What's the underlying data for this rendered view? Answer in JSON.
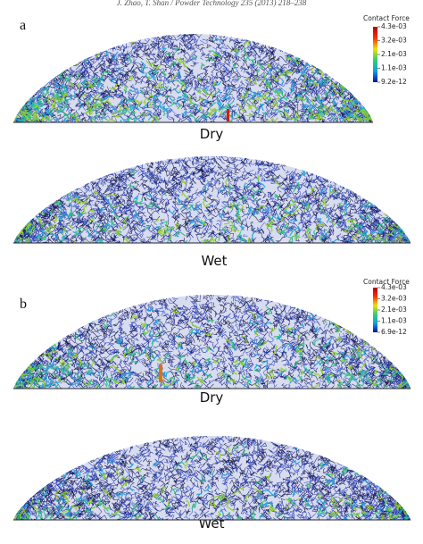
{
  "header": "J. Zhao, T. Shan / Powder Technology 235 (2013) 218–238",
  "panels": [
    {
      "label": "a",
      "colorbar": {
        "title": "Contact Force",
        "ticks": [
          "4.3e-03",
          "3.2e-03",
          "2.1e-03",
          "1.1e-03",
          "9.2e-12"
        ]
      },
      "images": [
        {
          "label": "Dry"
        },
        {
          "label": "Wet"
        }
      ]
    },
    {
      "label": "b",
      "colorbar": {
        "title": "Contact Force",
        "ticks": [
          "4.3e-03",
          "3.2e-03",
          "2.1e-03",
          "1.1e-03",
          "6.9e-12"
        ]
      },
      "images": [
        {
          "label": "Dry"
        },
        {
          "label": "Wet"
        }
      ]
    }
  ]
}
